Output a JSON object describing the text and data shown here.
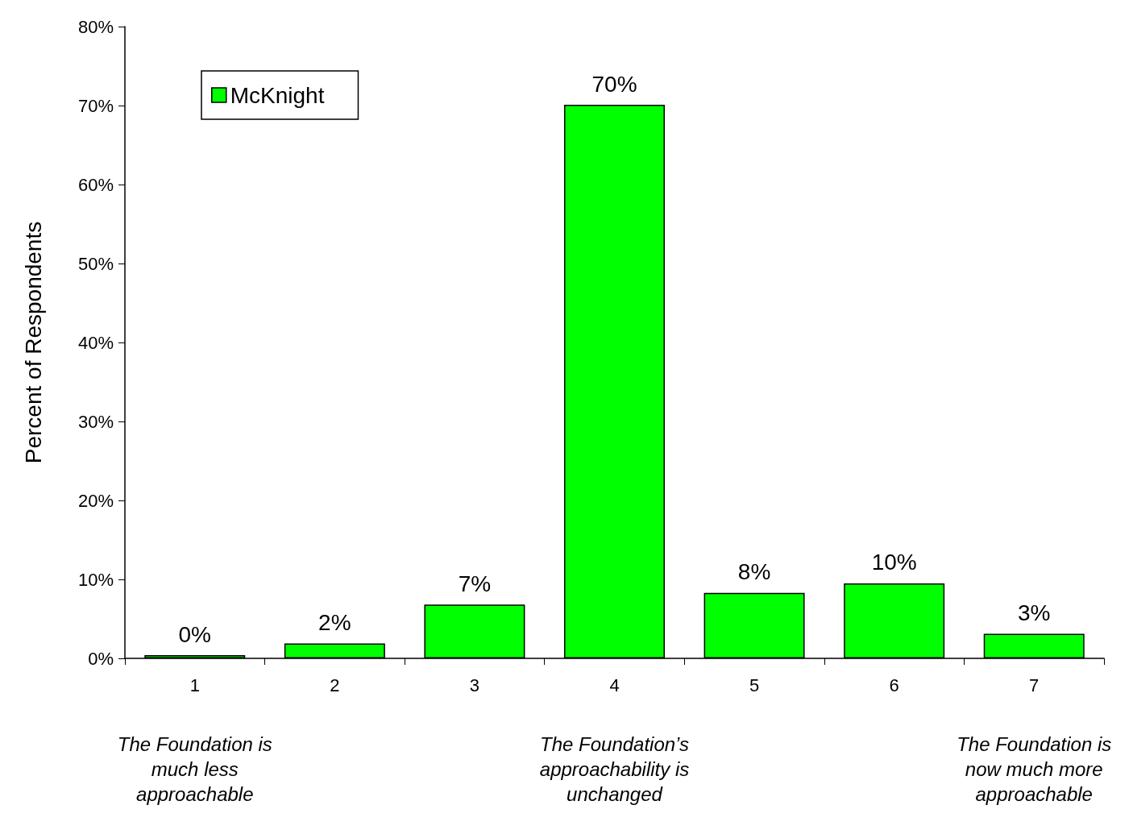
{
  "chart_data": {
    "type": "bar",
    "ylabel": "Percent of Respondents",
    "categories": [
      "1",
      "2",
      "3",
      "4",
      "5",
      "6",
      "7"
    ],
    "series": [
      {
        "name": "McKnight",
        "color": "#00ff00",
        "values": [
          0.4,
          1.9,
          6.8,
          70.1,
          8.3,
          9.5,
          3.1
        ],
        "value_labels": [
          "0%",
          "2%",
          "7%",
          "70%",
          "8%",
          "10%",
          "3%"
        ]
      }
    ],
    "ylim": [
      0,
      80
    ],
    "yticks": [
      {
        "value": 0,
        "label": "0%"
      },
      {
        "value": 10,
        "label": "10%"
      },
      {
        "value": 20,
        "label": "20%"
      },
      {
        "value": 30,
        "label": "30%"
      },
      {
        "value": 40,
        "label": "40%"
      },
      {
        "value": 50,
        "label": "50%"
      },
      {
        "value": 60,
        "label": "60%"
      },
      {
        "value": 70,
        "label": "70%"
      },
      {
        "value": 80,
        "label": "80%"
      }
    ],
    "grid": false,
    "legend": "top left",
    "annotations": [
      "The Foundation is\nmuch less\napproachable",
      "The Foundation’s\napproachability is\nunchanged",
      "The Foundation is\nnow much more\napproachable"
    ]
  }
}
